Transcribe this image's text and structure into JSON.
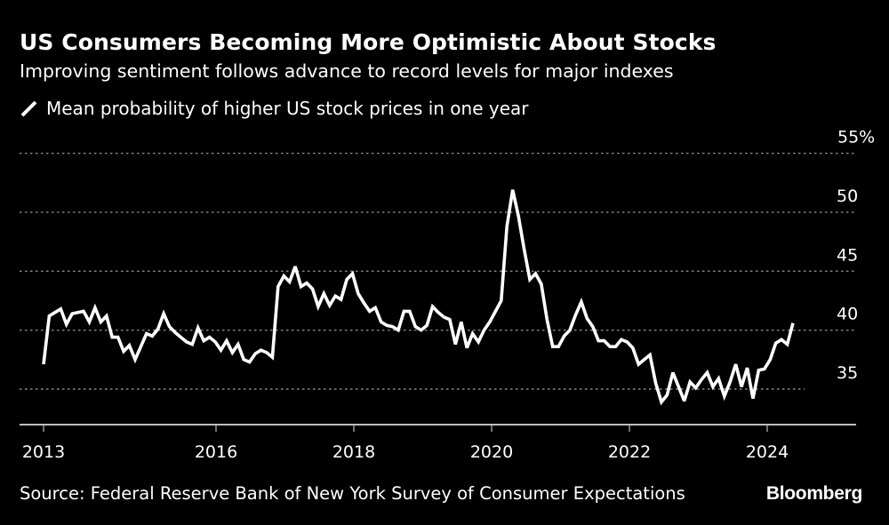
{
  "header": {
    "title": "US Consumers Becoming More Optimistic About Stocks",
    "subtitle": "Improving sentiment follows advance to record levels for major indexes"
  },
  "footer": {
    "source": "Source: Federal Reserve Bank of New York Survey of Consumer Expectations",
    "brand": "Bloomberg"
  },
  "colors": {
    "background": "#000000",
    "line": "#ffffff",
    "grid": "#8a8a8a",
    "axis": "#bdbdbd"
  },
  "chart_data": {
    "type": "line",
    "title": "US Consumers Becoming More Optimistic About Stocks",
    "subtitle": "Improving sentiment follows advance to record levels for major indexes",
    "xlabel": "",
    "ylabel": "",
    "legend": {
      "position": "top-left",
      "entries": [
        "Mean probability of higher US stock prices in one year"
      ]
    },
    "grid": true,
    "y_axis": {
      "side": "right",
      "ticks": [
        35,
        40,
        45,
        50,
        55
      ],
      "tick_labels": [
        "35",
        "40",
        "45",
        "50",
        "55%"
      ],
      "ylim": [
        31.5,
        56
      ]
    },
    "x_axis": {
      "ticks": [
        2013.42,
        2016,
        2018,
        2020,
        2022,
        2024
      ],
      "tick_labels": [
        "2013",
        "2016",
        "2018",
        "2020",
        "2022",
        "2024"
      ],
      "xlim": [
        2013.0,
        2025.2
      ]
    },
    "series": [
      {
        "name": "Mean probability of higher US stock prices in one year",
        "x_start": 2013.42,
        "x_step_years": 0.08333,
        "values": [
          37.1,
          41.2,
          41.5,
          41.8,
          40.5,
          41.4,
          41.5,
          41.6,
          40.7,
          41.9,
          40.7,
          41.2,
          39.4,
          39.4,
          38.2,
          38.7,
          37.5,
          38.6,
          39.7,
          39.5,
          40.1,
          41.4,
          40.3,
          39.8,
          39.4,
          39.0,
          38.8,
          40.2,
          39.1,
          39.4,
          39.0,
          38.3,
          39.1,
          38.1,
          38.8,
          37.5,
          37.3,
          38.0,
          38.3,
          38.1,
          37.7,
          43.7,
          44.6,
          44.1,
          45.4,
          43.7,
          44.0,
          43.5,
          42.0,
          43.1,
          42.1,
          42.9,
          42.6,
          44.3,
          44.8,
          43.1,
          42.3,
          41.6,
          41.9,
          40.7,
          40.4,
          40.3,
          40.0,
          41.6,
          41.6,
          40.3,
          40.0,
          40.4,
          42.0,
          41.5,
          41.1,
          40.9,
          38.8,
          40.7,
          38.5,
          39.7,
          39.0,
          40.0,
          40.7,
          41.6,
          42.5,
          48.8,
          51.9,
          49.7,
          46.9,
          44.3,
          44.8,
          43.9,
          40.9,
          38.6,
          38.6,
          39.5,
          40.0,
          41.3,
          42.4,
          41.0,
          40.3,
          39.1,
          39.1,
          38.6,
          38.6,
          39.2,
          39.0,
          38.5,
          37.1,
          37.5,
          37.9,
          35.5,
          33.9,
          34.5,
          36.4,
          35.2,
          34.0,
          35.6,
          35.1,
          35.8,
          36.4,
          35.2,
          35.9,
          34.4,
          35.6,
          37.1,
          35.2,
          36.8,
          34.2,
          36.6,
          36.7,
          37.5,
          38.9,
          39.2,
          38.8,
          40.6
        ]
      }
    ]
  }
}
